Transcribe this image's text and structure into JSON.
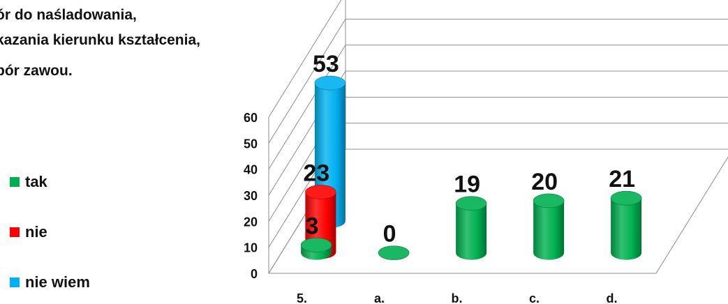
{
  "title_lines": [
    "ór do naśladowania,",
    "kazania kierunku kształcenia,",
    "bór zawou."
  ],
  "legend": [
    {
      "label": "tak",
      "color": "#00B050"
    },
    {
      "label": "nie",
      "color": "#FF0000"
    },
    {
      "label": "nie wiem",
      "color": "#00B0F0"
    }
  ],
  "chart_data": {
    "type": "bar",
    "style": "3d-cylinder",
    "categories": [
      "5.",
      "a.",
      "b.",
      "c.",
      "d."
    ],
    "ylim": [
      0,
      60
    ],
    "yticks": [
      0,
      10,
      20,
      30,
      40,
      50,
      60
    ],
    "grid": true,
    "legend_position": "left",
    "series": [
      {
        "name": "tak",
        "color": "#00B050",
        "values": [
          3,
          0,
          19,
          20,
          21
        ]
      },
      {
        "name": "nie",
        "color": "#FF0000",
        "values": [
          23,
          null,
          null,
          null,
          null
        ]
      },
      {
        "name": "nie wiem",
        "color": "#00B0F0",
        "values": [
          53,
          null,
          null,
          null,
          null
        ]
      }
    ]
  }
}
